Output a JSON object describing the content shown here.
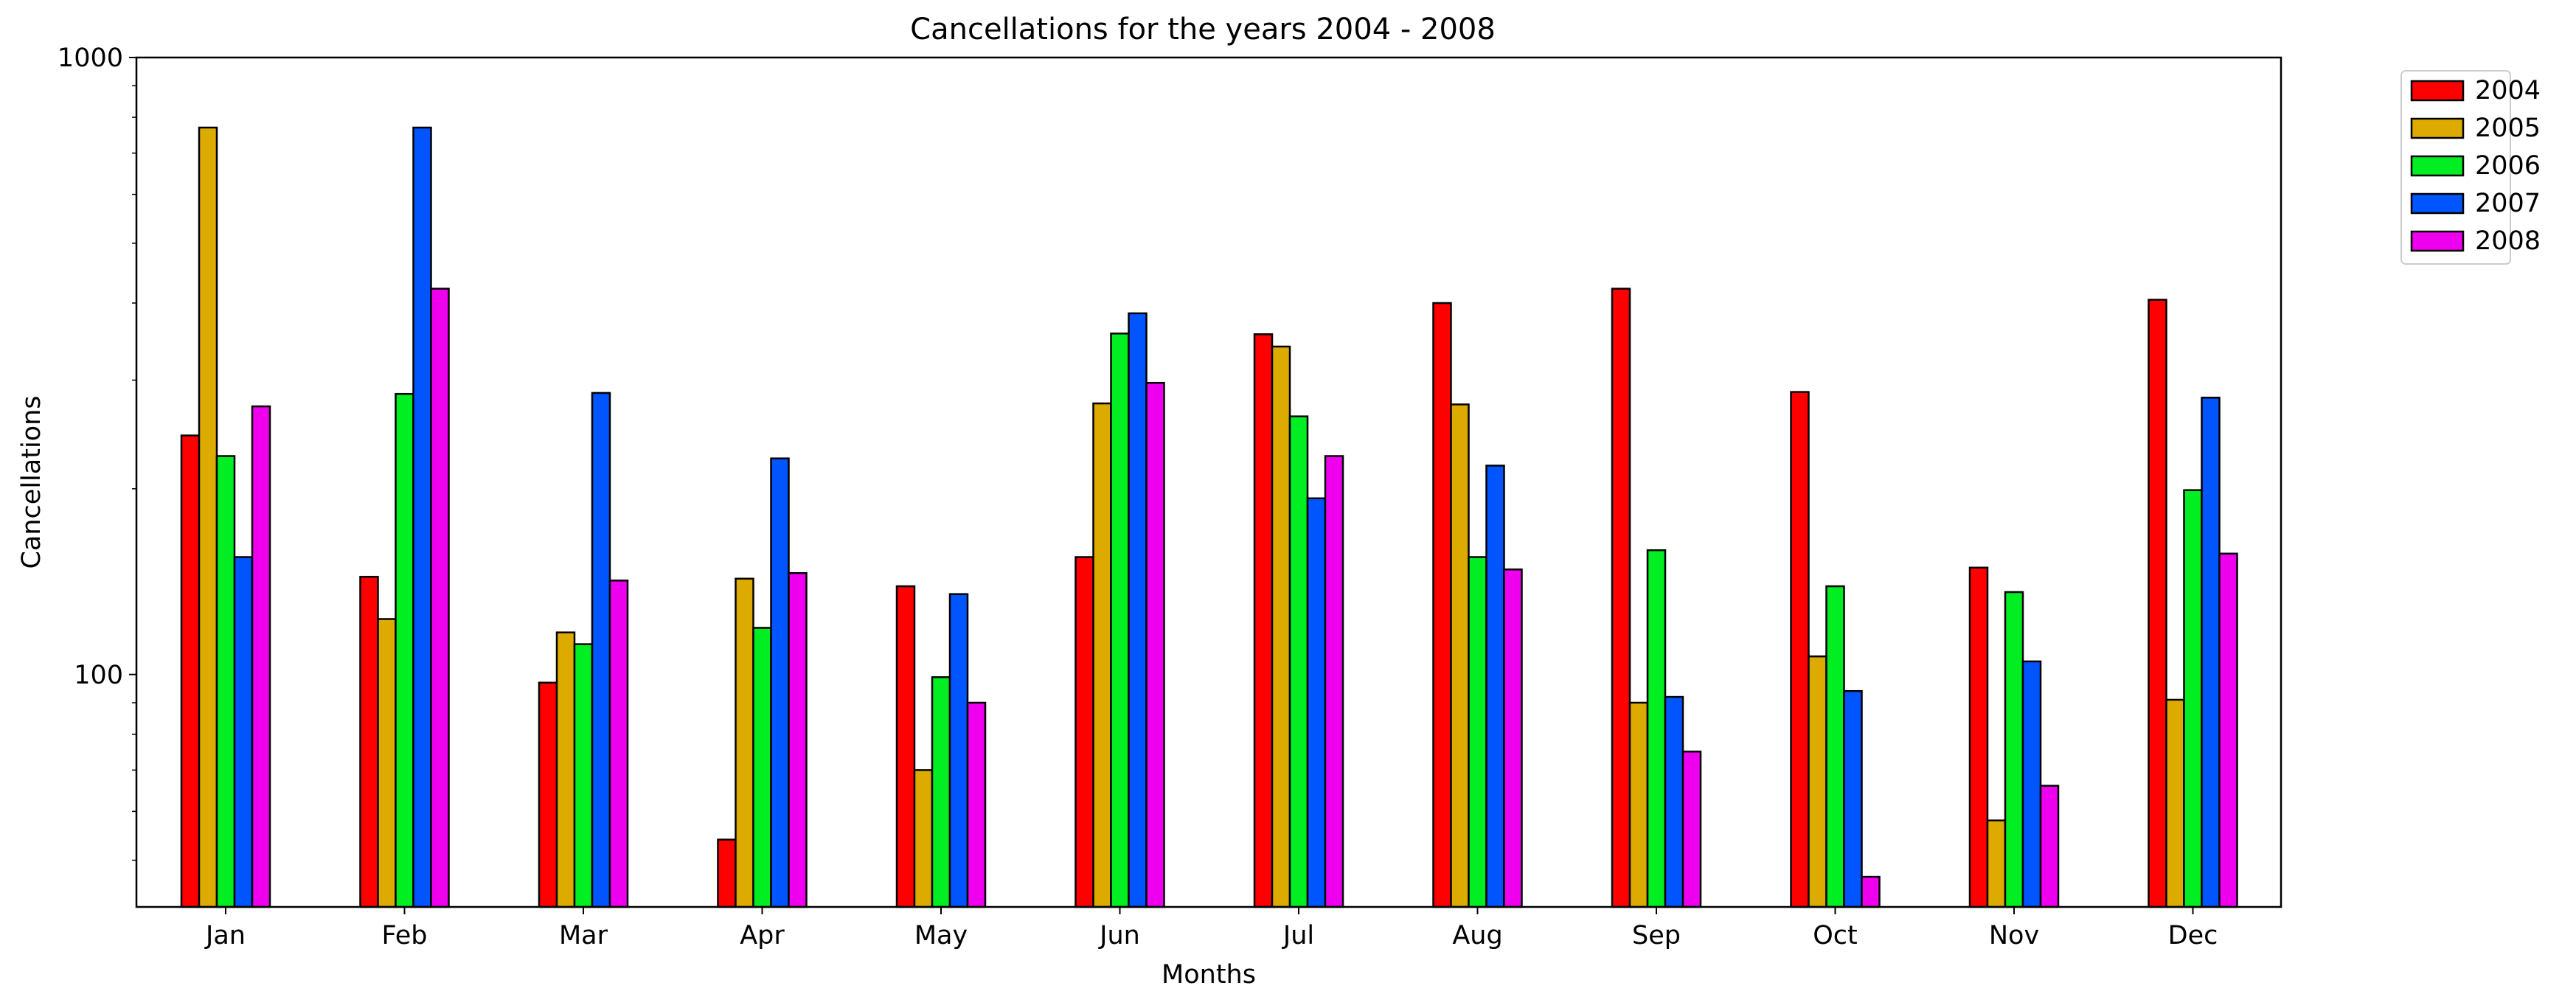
{
  "chart_data": {
    "type": "bar",
    "title": "Cancellations for the years 2004 - 2008",
    "xlabel": "Months",
    "ylabel": "Cancellations",
    "yscale": "log",
    "ylim": [
      42,
      1000
    ],
    "yticks": [
      {
        "value": 100,
        "label": "100"
      },
      {
        "value": 1000,
        "label": "1000"
      }
    ],
    "grid": false,
    "legend_position": "outside-top-right",
    "categories": [
      "Jan",
      "Feb",
      "Mar",
      "Apr",
      "May",
      "Jun",
      "Jul",
      "Aug",
      "Sep",
      "Oct",
      "Nov",
      "Dec"
    ],
    "series": [
      {
        "name": "2004",
        "color": "#ff0000",
        "values": [
          244,
          144,
          97,
          54,
          139,
          155,
          356,
          400,
          422,
          287,
          149,
          405
        ]
      },
      {
        "name": "2005",
        "color": "#ddaa00",
        "values": [
          770,
          123,
          117,
          143,
          70,
          275,
          340,
          274,
          90,
          107,
          58,
          91
        ]
      },
      {
        "name": "2006",
        "color": "#00ee22",
        "values": [
          226,
          285,
          112,
          119,
          99,
          357,
          262,
          155,
          159,
          139,
          136,
          199
        ]
      },
      {
        "name": "2007",
        "color": "#0055ff",
        "values": [
          155,
          770,
          286,
          224,
          135,
          385,
          193,
          218,
          92,
          94,
          105,
          281
        ]
      },
      {
        "name": "2008",
        "color": "#ee00ee",
        "values": [
          272,
          422,
          142,
          146,
          90,
          297,
          226,
          148,
          75,
          47,
          66,
          157
        ]
      }
    ]
  }
}
